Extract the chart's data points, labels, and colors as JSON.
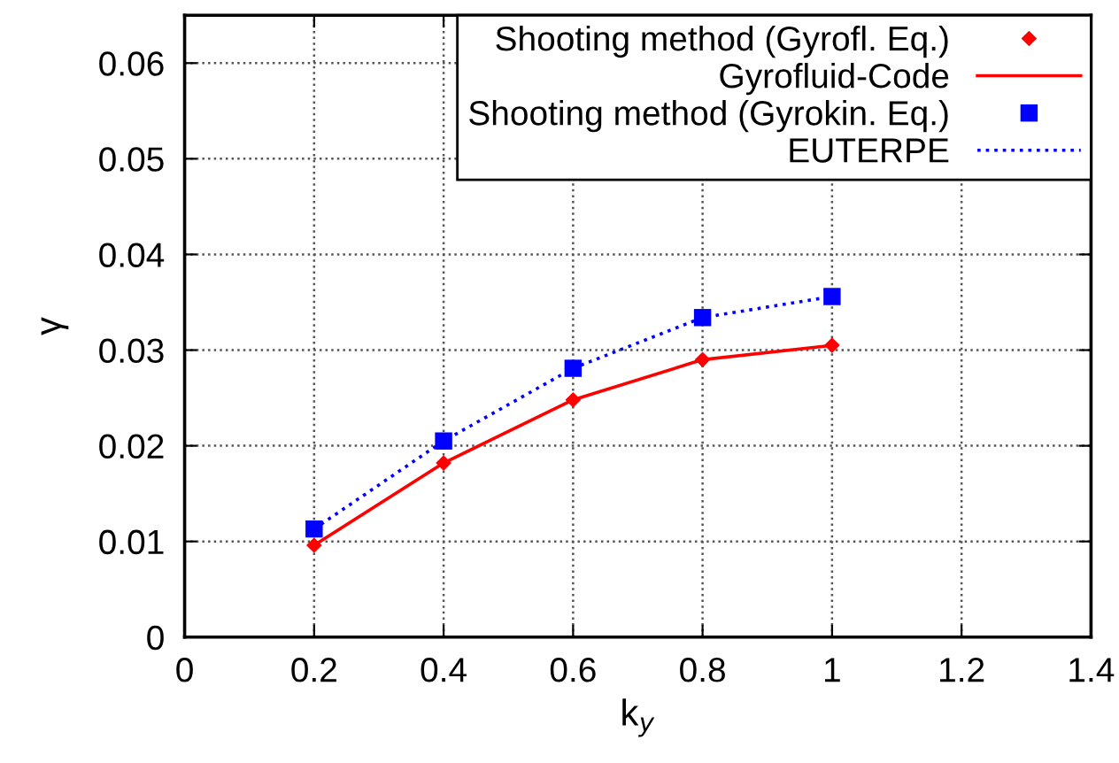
{
  "chart_data": {
    "type": "line",
    "xlabel": "k$_{y}$",
    "ylabel": "γ",
    "x": [
      0.2,
      0.4,
      0.6,
      0.8,
      1.0
    ],
    "series": [
      {
        "name": "Shooting method (Gyrofl. Eq.)",
        "type": "scatter",
        "marker": "diamond",
        "color": "#ff0000",
        "values": [
          0.0096,
          0.0182,
          0.0248,
          0.029,
          0.0305
        ]
      },
      {
        "name": "Gyrofluid-Code",
        "line_style": "solid",
        "color": "#ff0000",
        "values": [
          0.0096,
          0.0182,
          0.0248,
          0.029,
          0.0305
        ]
      },
      {
        "name": "Shooting method (Gyrokin. Eq.)",
        "type": "scatter",
        "marker": "square",
        "color": "#0000ff",
        "values": [
          0.0113,
          0.0205,
          0.0281,
          0.0334,
          0.0356
        ]
      },
      {
        "name": "EUTERPE",
        "line_style": "dotted",
        "color": "#0000ff",
        "values": [
          0.0113,
          0.0205,
          0.0281,
          0.0334,
          0.0356
        ]
      }
    ],
    "xlim": [
      0,
      1.4
    ],
    "xticks": [
      0,
      0.2,
      0.4,
      0.6,
      0.8,
      1,
      1.2,
      1.4
    ],
    "ylim": [
      0,
      0.065
    ],
    "yticks": [
      0,
      0.01,
      0.02,
      0.03,
      0.04,
      0.05,
      0.06
    ],
    "grid": true,
    "legend": "top right"
  }
}
